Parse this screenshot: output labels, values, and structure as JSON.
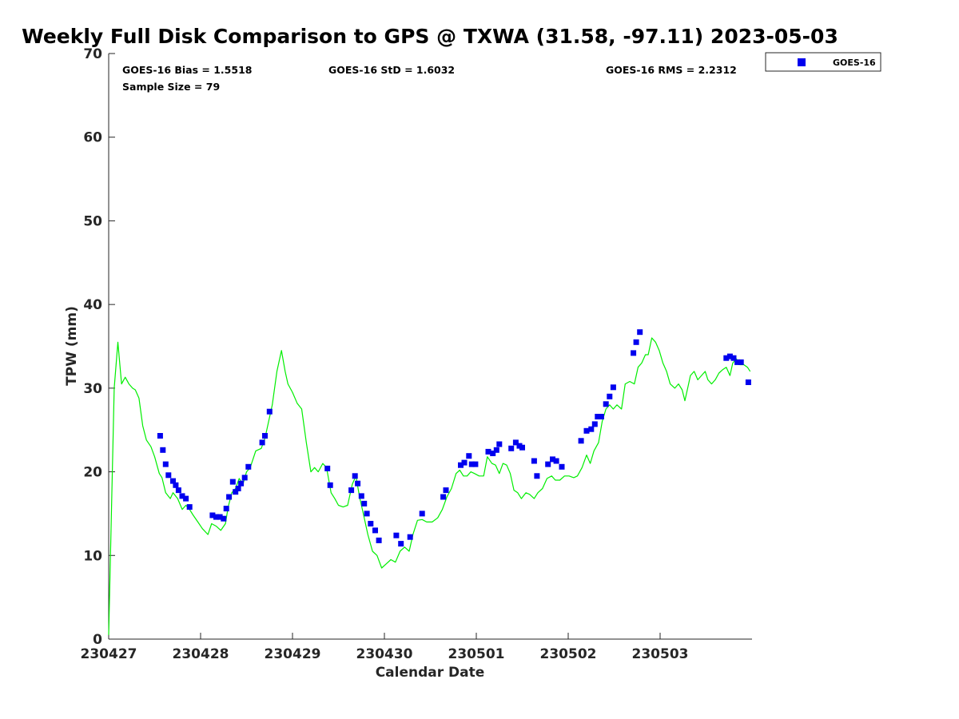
{
  "chart_data": {
    "type": "scatter",
    "title": "Weekly Full Disk Comparison to GPS @ TXWA (31.58, -97.11) 2023-05-03",
    "xlabel": "Calendar Date",
    "ylabel": "TPW (mm)",
    "xlim": [
      0,
      7
    ],
    "ylim": [
      0,
      70
    ],
    "yticks": [
      0,
      10,
      20,
      30,
      40,
      50,
      60,
      70
    ],
    "xticks": [
      {
        "x": 0,
        "label": "230427"
      },
      {
        "x": 1,
        "label": "230428"
      },
      {
        "x": 2,
        "label": "230429"
      },
      {
        "x": 3,
        "label": "230430"
      },
      {
        "x": 4,
        "label": "230501"
      },
      {
        "x": 5,
        "label": "230502"
      },
      {
        "x": 6,
        "label": "230503"
      }
    ],
    "grid": false,
    "legend_position": "top-right",
    "stats": {
      "bias": "GOES-16 Bias = 1.5518",
      "std": "GOES-16 StD = 1.6032",
      "rms": "GOES-16 RMS = 2.2312",
      "sample": "Sample Size = 79"
    },
    "series": [
      {
        "name": "GOES-16",
        "kind": "scatter",
        "color": "#0000ee",
        "marker": "square",
        "points": [
          [
            0.56,
            24.3
          ],
          [
            0.59,
            22.6
          ],
          [
            0.62,
            20.9
          ],
          [
            0.65,
            19.6
          ],
          [
            0.7,
            18.9
          ],
          [
            0.73,
            18.4
          ],
          [
            0.76,
            17.8
          ],
          [
            0.8,
            17.1
          ],
          [
            0.84,
            16.8
          ],
          [
            0.88,
            15.8
          ],
          [
            1.13,
            14.8
          ],
          [
            1.17,
            14.6
          ],
          [
            1.21,
            14.6
          ],
          [
            1.25,
            14.4
          ],
          [
            1.28,
            15.6
          ],
          [
            1.31,
            17.0
          ],
          [
            1.35,
            18.8
          ],
          [
            1.38,
            17.6
          ],
          [
            1.41,
            18.0
          ],
          [
            1.44,
            18.6
          ],
          [
            1.48,
            19.3
          ],
          [
            1.52,
            20.6
          ],
          [
            1.67,
            23.5
          ],
          [
            1.7,
            24.3
          ],
          [
            1.75,
            27.2
          ],
          [
            2.38,
            20.4
          ],
          [
            2.41,
            18.4
          ],
          [
            2.64,
            17.8
          ],
          [
            2.68,
            19.5
          ],
          [
            2.71,
            18.6
          ],
          [
            2.75,
            17.1
          ],
          [
            2.78,
            16.2
          ],
          [
            2.81,
            15.0
          ],
          [
            2.85,
            13.8
          ],
          [
            2.9,
            13.0
          ],
          [
            2.94,
            11.8
          ],
          [
            3.13,
            12.4
          ],
          [
            3.18,
            11.4
          ],
          [
            3.28,
            12.2
          ],
          [
            3.41,
            15.0
          ],
          [
            3.64,
            17.0
          ],
          [
            3.67,
            17.8
          ],
          [
            3.83,
            20.8
          ],
          [
            3.87,
            21.1
          ],
          [
            3.92,
            21.9
          ],
          [
            3.95,
            20.9
          ],
          [
            3.99,
            20.9
          ],
          [
            4.13,
            22.4
          ],
          [
            4.18,
            22.2
          ],
          [
            4.22,
            22.6
          ],
          [
            4.25,
            23.3
          ],
          [
            4.38,
            22.8
          ],
          [
            4.43,
            23.5
          ],
          [
            4.47,
            23.1
          ],
          [
            4.5,
            22.9
          ],
          [
            4.63,
            21.3
          ],
          [
            4.66,
            19.5
          ],
          [
            4.78,
            20.9
          ],
          [
            4.83,
            21.5
          ],
          [
            4.87,
            21.3
          ],
          [
            4.93,
            20.6
          ],
          [
            5.14,
            23.7
          ],
          [
            5.2,
            24.9
          ],
          [
            5.25,
            25.1
          ],
          [
            5.29,
            25.7
          ],
          [
            5.32,
            26.6
          ],
          [
            5.36,
            26.6
          ],
          [
            5.41,
            28.1
          ],
          [
            5.45,
            29.0
          ],
          [
            5.49,
            30.1
          ],
          [
            5.71,
            34.2
          ],
          [
            5.74,
            35.5
          ],
          [
            5.78,
            36.7
          ],
          [
            6.72,
            33.6
          ],
          [
            6.76,
            33.8
          ],
          [
            6.8,
            33.6
          ],
          [
            6.84,
            33.1
          ],
          [
            6.88,
            33.1
          ],
          [
            6.96,
            30.7
          ]
        ]
      },
      {
        "name": "",
        "kind": "line",
        "color": "#00ee00",
        "points": [
          [
            0.0,
            0.5
          ],
          [
            0.03,
            15
          ],
          [
            0.06,
            30
          ],
          [
            0.1,
            35.5
          ],
          [
            0.14,
            30.5
          ],
          [
            0.18,
            31.3
          ],
          [
            0.22,
            30.5
          ],
          [
            0.26,
            30.0
          ],
          [
            0.29,
            29.8
          ],
          [
            0.33,
            28.8
          ],
          [
            0.37,
            25.5
          ],
          [
            0.41,
            23.8
          ],
          [
            0.46,
            23.0
          ],
          [
            0.5,
            21.8
          ],
          [
            0.55,
            19.8
          ],
          [
            0.58,
            19.3
          ],
          [
            0.62,
            17.5
          ],
          [
            0.67,
            16.8
          ],
          [
            0.7,
            17.5
          ],
          [
            0.75,
            16.8
          ],
          [
            0.8,
            15.5
          ],
          [
            0.84,
            16.0
          ],
          [
            0.88,
            15.5
          ],
          [
            0.92,
            14.8
          ],
          [
            0.97,
            14.0
          ],
          [
            1.02,
            13.2
          ],
          [
            1.08,
            12.5
          ],
          [
            1.12,
            13.8
          ],
          [
            1.17,
            13.5
          ],
          [
            1.22,
            13.0
          ],
          [
            1.27,
            13.8
          ],
          [
            1.3,
            15.8
          ],
          [
            1.34,
            17.5
          ],
          [
            1.38,
            18.0
          ],
          [
            1.42,
            19.2
          ],
          [
            1.46,
            18.5
          ],
          [
            1.5,
            20.0
          ],
          [
            1.54,
            20.5
          ],
          [
            1.6,
            22.5
          ],
          [
            1.66,
            22.8
          ],
          [
            1.7,
            24.0
          ],
          [
            1.74,
            26.0
          ],
          [
            1.78,
            28.0
          ],
          [
            1.83,
            32.0
          ],
          [
            1.88,
            34.5
          ],
          [
            1.92,
            32.0
          ],
          [
            1.95,
            30.5
          ],
          [
            2.0,
            29.5
          ],
          [
            2.05,
            28.2
          ],
          [
            2.1,
            27.5
          ],
          [
            2.15,
            23.5
          ],
          [
            2.2,
            20.0
          ],
          [
            2.24,
            20.5
          ],
          [
            2.28,
            20.0
          ],
          [
            2.33,
            21.0
          ],
          [
            2.37,
            20.5
          ],
          [
            2.42,
            17.5
          ],
          [
            2.46,
            16.8
          ],
          [
            2.5,
            16.0
          ],
          [
            2.55,
            15.8
          ],
          [
            2.6,
            16.0
          ],
          [
            2.65,
            18.5
          ],
          [
            2.69,
            19.5
          ],
          [
            2.73,
            17.0
          ],
          [
            2.77,
            15.0
          ],
          [
            2.82,
            12.5
          ],
          [
            2.87,
            10.5
          ],
          [
            2.92,
            10.0
          ],
          [
            2.97,
            8.5
          ],
          [
            3.02,
            9.0
          ],
          [
            3.07,
            9.5
          ],
          [
            3.12,
            9.2
          ],
          [
            3.17,
            10.5
          ],
          [
            3.22,
            11.0
          ],
          [
            3.27,
            10.5
          ],
          [
            3.31,
            12.5
          ],
          [
            3.36,
            14.2
          ],
          [
            3.41,
            14.3
          ],
          [
            3.46,
            14.0
          ],
          [
            3.52,
            14.0
          ],
          [
            3.58,
            14.5
          ],
          [
            3.63,
            15.5
          ],
          [
            3.68,
            17.0
          ],
          [
            3.73,
            18.0
          ],
          [
            3.78,
            19.8
          ],
          [
            3.82,
            20.2
          ],
          [
            3.86,
            19.5
          ],
          [
            3.9,
            19.5
          ],
          [
            3.94,
            20.0
          ],
          [
            3.98,
            19.8
          ],
          [
            4.03,
            19.5
          ],
          [
            4.08,
            19.5
          ],
          [
            4.12,
            21.8
          ],
          [
            4.17,
            21.0
          ],
          [
            4.21,
            20.8
          ],
          [
            4.25,
            19.8
          ],
          [
            4.29,
            21.0
          ],
          [
            4.33,
            20.8
          ],
          [
            4.37,
            19.8
          ],
          [
            4.41,
            17.8
          ],
          [
            4.45,
            17.5
          ],
          [
            4.49,
            16.8
          ],
          [
            4.54,
            17.5
          ],
          [
            4.58,
            17.3
          ],
          [
            4.63,
            16.8
          ],
          [
            4.67,
            17.5
          ],
          [
            4.72,
            18.0
          ],
          [
            4.77,
            19.2
          ],
          [
            4.82,
            19.5
          ],
          [
            4.86,
            19.0
          ],
          [
            4.91,
            19.0
          ],
          [
            4.96,
            19.5
          ],
          [
            5.01,
            19.5
          ],
          [
            5.06,
            19.3
          ],
          [
            5.1,
            19.5
          ],
          [
            5.15,
            20.5
          ],
          [
            5.2,
            22.0
          ],
          [
            5.24,
            21.0
          ],
          [
            5.28,
            22.5
          ],
          [
            5.33,
            23.5
          ],
          [
            5.37,
            26.0
          ],
          [
            5.41,
            27.5
          ],
          [
            5.45,
            28.0
          ],
          [
            5.49,
            27.5
          ],
          [
            5.53,
            28.0
          ],
          [
            5.58,
            27.5
          ],
          [
            5.62,
            30.5
          ],
          [
            5.67,
            30.8
          ],
          [
            5.72,
            30.5
          ],
          [
            5.76,
            32.5
          ],
          [
            5.8,
            33.0
          ],
          [
            5.84,
            34.0
          ],
          [
            5.87,
            34.0
          ],
          [
            5.91,
            36.0
          ],
          [
            5.95,
            35.5
          ],
          [
            5.99,
            34.5
          ],
          [
            6.03,
            33.0
          ],
          [
            6.07,
            32.0
          ],
          [
            6.11,
            30.5
          ],
          [
            6.16,
            30.0
          ],
          [
            6.2,
            30.5
          ],
          [
            6.24,
            29.8
          ],
          [
            6.27,
            28.5
          ],
          [
            6.3,
            30.0
          ],
          [
            6.33,
            31.5
          ],
          [
            6.37,
            32.0
          ],
          [
            6.41,
            31.0
          ],
          [
            6.45,
            31.5
          ],
          [
            6.49,
            32.0
          ],
          [
            6.52,
            31.0
          ],
          [
            6.56,
            30.5
          ],
          [
            6.6,
            31.0
          ],
          [
            6.64,
            31.8
          ],
          [
            6.68,
            32.2
          ],
          [
            6.72,
            32.5
          ],
          [
            6.76,
            31.5
          ],
          [
            6.79,
            33.0
          ],
          [
            6.83,
            33.5
          ],
          [
            6.87,
            32.8
          ],
          [
            6.91,
            32.8
          ],
          [
            6.95,
            32.5
          ],
          [
            6.98,
            32.0
          ]
        ]
      }
    ]
  }
}
